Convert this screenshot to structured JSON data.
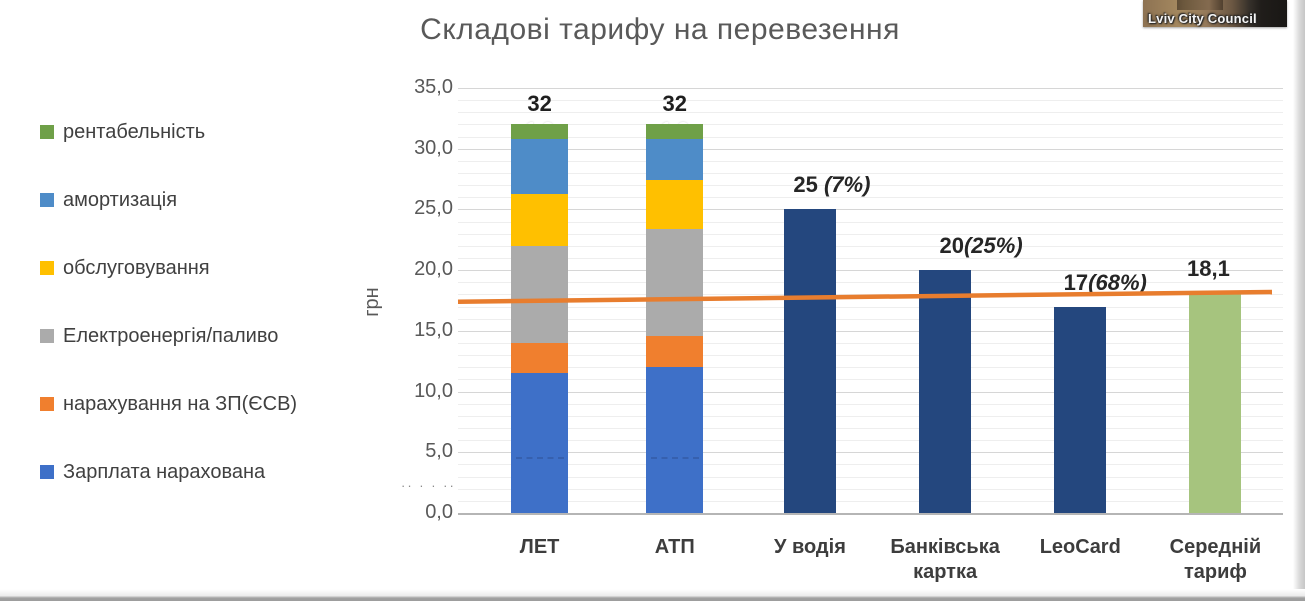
{
  "title": "Складові тарифу на перевезення",
  "thumbnail": {
    "caption": "Lviv City Council"
  },
  "artifacts": {
    "axis_dots": "·· · · ··"
  },
  "chart_data": {
    "type": "bar",
    "subtype": "stacked-and-single-combo-with-line",
    "title": "Складові тарифу на перевезення",
    "xlabel": "",
    "ylabel": "грн",
    "ylim": [
      0,
      35
    ],
    "y_major_step": 5,
    "y_minor_step": 1,
    "grid": "on",
    "legend_position": "left",
    "y_ticks": [
      {
        "value": 0,
        "label": "0,0"
      },
      {
        "value": 5,
        "label": "5,0"
      },
      {
        "value": 10,
        "label": "10,0"
      },
      {
        "value": 15,
        "label": "15,0"
      },
      {
        "value": 20,
        "label": "20,0"
      },
      {
        "value": 25,
        "label": "25,0"
      },
      {
        "value": 30,
        "label": "30,0"
      },
      {
        "value": 35,
        "label": "35,0"
      }
    ],
    "categories": [
      "ЛЕТ",
      "АТП",
      "У водія",
      "Банківська картка",
      "LeoCard",
      "Середній тариф"
    ],
    "legend": [
      {
        "label": "рентабельність",
        "color": "#6FA048"
      },
      {
        "label": "амортизація",
        "color": "#4E8CC8"
      },
      {
        "label": "обслуговування",
        "color": "#FFC000"
      },
      {
        "label": "Електроенергія/паливо",
        "color": "#ABABAB"
      },
      {
        "label": "нарахування на ЗП(ЄСВ)",
        "color": "#F07F2E"
      },
      {
        "label": "Зарплата нарахована",
        "color": "#3E70C8"
      }
    ],
    "columns": [
      {
        "category": "ЛЕТ",
        "label_lines": [
          "ЛЕТ"
        ],
        "type": "stacked",
        "total": 32,
        "total_label": "32",
        "segments": [
          {
            "name": "Зарплата нарахована",
            "value": 11.5,
            "label": "11,5",
            "color": "#3E70C8"
          },
          {
            "name": "нарахування на ЗП(ЄСВ)",
            "value": 2.5,
            "label": "2,5",
            "color": "#F07F2E"
          },
          {
            "name": "Електроенергія/паливо",
            "value": 8.0,
            "label": "8,0",
            "color": "#ABABAB"
          },
          {
            "name": "обслуговування",
            "value": 4.3,
            "label": "4,3",
            "color": "#FFC000"
          },
          {
            "name": "амортизація",
            "value": 4.5,
            "label": "4,5",
            "color": "#4E8CC8"
          },
          {
            "name": "рентабельність",
            "value": 1.2,
            "label": "1,2",
            "color": "#6FA048"
          }
        ]
      },
      {
        "category": "АТП",
        "label_lines": [
          "АТП"
        ],
        "type": "stacked",
        "total": 32,
        "total_label": "32",
        "segments": [
          {
            "name": "Зарплата нарахована",
            "value": 12.0,
            "label": "12,0",
            "color": "#3E70C8"
          },
          {
            "name": "нарахування на ЗП(ЄСВ)",
            "value": 2.6,
            "label": "2,6",
            "color": "#F07F2E"
          },
          {
            "name": "Електроенергія/паливо",
            "value": 8.8,
            "label": "8,8",
            "color": "#ABABAB"
          },
          {
            "name": "обслуговування",
            "value": 4.0,
            "label": "4,0",
            "color": "#FFC000"
          },
          {
            "name": "амортизація",
            "value": 3.4,
            "label": "3,4",
            "color": "#4E8CC8"
          },
          {
            "name": "рентабельність",
            "value": 1.2,
            "label": "1,2",
            "color": "#6FA048"
          }
        ]
      },
      {
        "category": "У водія",
        "label_lines": [
          "У водія"
        ],
        "type": "single",
        "value": 25,
        "label_num": "25 ",
        "label_pct": "(7%)",
        "color": "#24477E"
      },
      {
        "category": "Банківська картка",
        "label_lines": [
          "Банківська",
          "картка"
        ],
        "type": "single",
        "value": 20,
        "label_num": "20",
        "label_pct": "(25%)",
        "color": "#24477E"
      },
      {
        "category": "LeoCard",
        "label_lines": [
          "LeoCard"
        ],
        "type": "single",
        "value": 17,
        "label_num": "17",
        "label_pct": "(68%)",
        "color": "#24477E"
      },
      {
        "category": "Середній тариф",
        "label_lines": [
          "Середній",
          "тариф"
        ],
        "type": "single",
        "value": 18.1,
        "label_num": "18,1",
        "label_pct": "",
        "color": "#A6C47E"
      }
    ],
    "trend_line": {
      "start_value": 17.4,
      "end_value": 18.2,
      "color": "#E87D2E"
    }
  }
}
